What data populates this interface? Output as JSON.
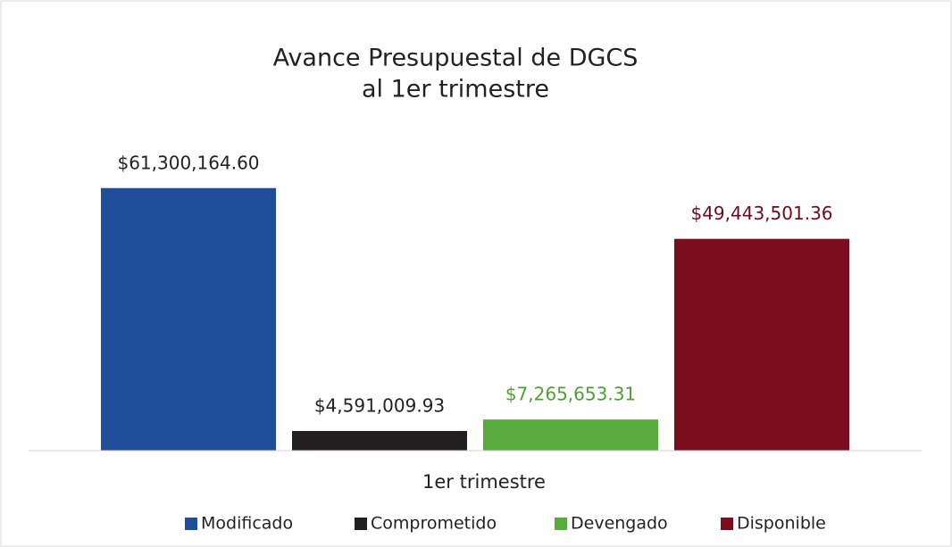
{
  "chart_data": {
    "type": "bar",
    "title": [
      "Avance Presupuestal de DGCS",
      "al 1er trimestre"
    ],
    "categories": [
      "1er trimestre"
    ],
    "series": [
      {
        "name": "Modificado",
        "color": "#1d4e97",
        "label_color": "#222222",
        "values": [
          61300164.6
        ],
        "value_labels": [
          "$61,300,164.60"
        ]
      },
      {
        "name": "Comprometido",
        "color": "#231f20",
        "label_color": "#222222",
        "values": [
          4591009.93
        ],
        "value_labels": [
          "$4,591,009.93"
        ]
      },
      {
        "name": "Devengado",
        "color": "#5aab3e",
        "label_color": "#4f9e36",
        "values": [
          7265653.31
        ],
        "value_labels": [
          "$7,265,653.31"
        ]
      },
      {
        "name": "Disponible",
        "color": "#7a0e1e",
        "label_color": "#6a0c1a",
        "values": [
          49443501.36
        ],
        "value_labels": [
          "$49,443,501.36"
        ]
      }
    ],
    "ylim": [
      0,
      70000000
    ],
    "legend": "bottom"
  }
}
